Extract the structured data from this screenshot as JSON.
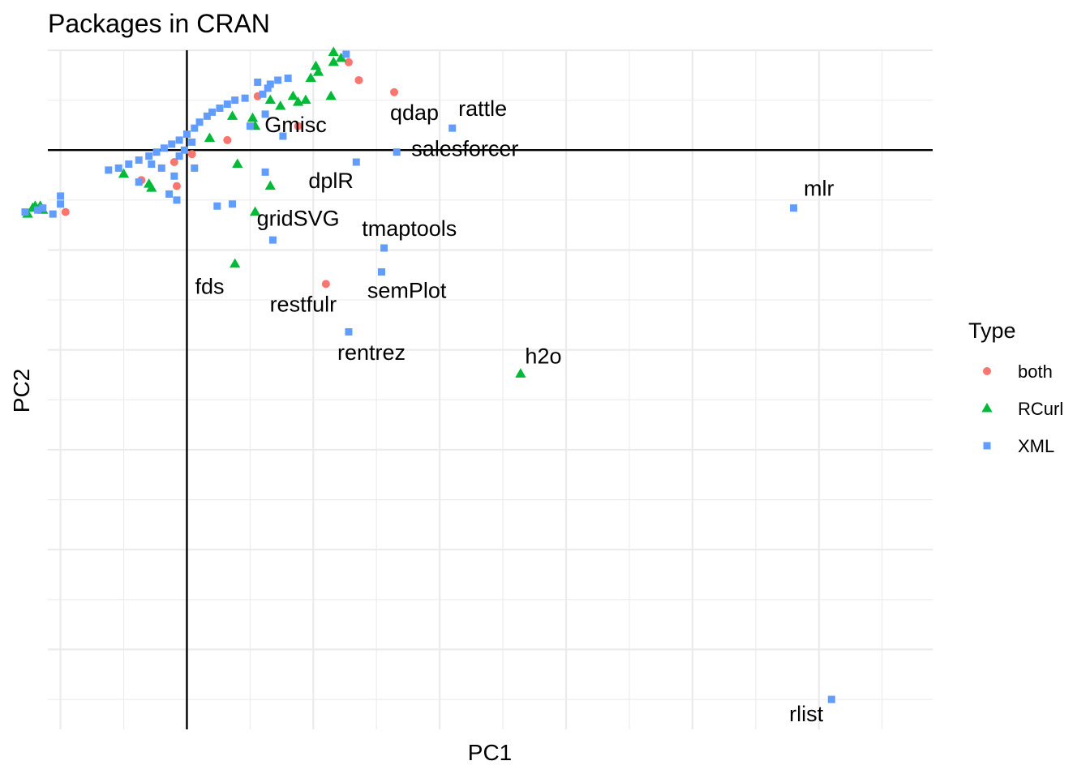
{
  "chart_data": {
    "type": "scatter",
    "title": "Packages in CRAN",
    "xlabel": "PC1",
    "ylabel": "PC2",
    "xlim": [
      -0.55,
      2.95
    ],
    "ylim": [
      -2.9,
      0.5
    ],
    "grid": true,
    "legend": {
      "title": "Type",
      "placement": "right",
      "entries": [
        {
          "name": "both",
          "shape": "circle",
          "color": "#F8766D"
        },
        {
          "name": "RCurl",
          "shape": "triangle",
          "color": "#00BA38"
        },
        {
          "name": "XML",
          "shape": "square",
          "color": "#619CFF"
        }
      ]
    },
    "series": [
      {
        "name": "both",
        "color": "#F8766D",
        "shape": "circle",
        "points": [
          [
            0.64,
            0.44
          ],
          [
            0.68,
            0.35
          ],
          [
            0.82,
            0.29
          ],
          [
            0.28,
            0.27
          ],
          [
            0.44,
            0.12
          ],
          [
            0.16,
            0.05
          ],
          [
            0.02,
            -0.02
          ],
          [
            -0.05,
            -0.06
          ],
          [
            -0.18,
            -0.15
          ],
          [
            -0.04,
            -0.18
          ],
          [
            -0.48,
            -0.31
          ],
          [
            0.55,
            -0.67
          ]
        ]
      },
      {
        "name": "RCurl",
        "color": "#00BA38",
        "shape": "triangle",
        "points": [
          [
            0.58,
            0.49
          ],
          [
            0.58,
            0.44
          ],
          [
            0.61,
            0.46
          ],
          [
            0.51,
            0.42
          ],
          [
            0.49,
            0.36
          ],
          [
            0.52,
            0.39
          ],
          [
            0.57,
            0.27
          ],
          [
            0.42,
            0.27
          ],
          [
            0.47,
            0.25
          ],
          [
            0.33,
            0.25
          ],
          [
            0.37,
            0.22
          ],
          [
            0.44,
            0.24
          ],
          [
            0.26,
            0.16
          ],
          [
            0.18,
            0.17
          ],
          [
            0.27,
            0.12
          ],
          [
            0.09,
            0.06
          ],
          [
            0.2,
            -0.07
          ],
          [
            -0.25,
            -0.12
          ],
          [
            -0.15,
            -0.17
          ],
          [
            -0.14,
            -0.19
          ],
          [
            0.33,
            -0.18
          ],
          [
            0.27,
            -0.31
          ],
          [
            0.19,
            -0.57
          ],
          [
            1.32,
            -1.12
          ],
          [
            -0.6,
            -0.28
          ],
          [
            -0.61,
            -0.29
          ],
          [
            -0.57,
            -0.3
          ],
          [
            -0.63,
            -0.32
          ],
          [
            -0.58,
            -0.28
          ]
        ]
      },
      {
        "name": "XML",
        "color": "#619CFF",
        "shape": "square",
        "points": [
          [
            0.63,
            0.48
          ],
          [
            0.4,
            0.36
          ],
          [
            0.36,
            0.35
          ],
          [
            0.33,
            0.33
          ],
          [
            0.28,
            0.34
          ],
          [
            0.32,
            0.31
          ],
          [
            0.3,
            0.28
          ],
          [
            0.23,
            0.26
          ],
          [
            0.19,
            0.25
          ],
          [
            0.16,
            0.23
          ],
          [
            0.13,
            0.21
          ],
          [
            0.1,
            0.19
          ],
          [
            0.08,
            0.17
          ],
          [
            0.05,
            0.14
          ],
          [
            0.03,
            0.11
          ],
          [
            0.0,
            0.08
          ],
          [
            -0.03,
            0.05
          ],
          [
            -0.06,
            0.03
          ],
          [
            -0.09,
            0.01
          ],
          [
            -0.12,
            -0.01
          ],
          [
            -0.15,
            -0.03
          ],
          [
            -0.19,
            -0.05
          ],
          [
            -0.23,
            -0.07
          ],
          [
            -0.27,
            -0.09
          ],
          [
            -0.31,
            -0.1
          ],
          [
            0.31,
            0.18
          ],
          [
            0.25,
            0.12
          ],
          [
            0.38,
            0.07
          ],
          [
            0.02,
            0.04
          ],
          [
            -0.01,
            0.0
          ],
          [
            -0.03,
            -0.03
          ],
          [
            0.03,
            -0.09
          ],
          [
            -0.1,
            -0.09
          ],
          [
            -0.05,
            -0.13
          ],
          [
            -0.14,
            -0.07
          ],
          [
            -0.19,
            -0.16
          ],
          [
            -0.07,
            -0.22
          ],
          [
            0.31,
            -0.11
          ],
          [
            0.18,
            -0.27
          ],
          [
            0.12,
            -0.28
          ],
          [
            0.34,
            -0.45
          ],
          [
            0.67,
            -0.06
          ],
          [
            0.83,
            -0.01
          ],
          [
            1.05,
            0.11
          ],
          [
            0.64,
            -0.91
          ],
          [
            0.78,
            -0.49
          ],
          [
            0.77,
            -0.61
          ],
          [
            2.4,
            -0.29
          ],
          [
            2.55,
            -2.75
          ],
          [
            -0.5,
            -0.23
          ],
          [
            -0.5,
            -0.27
          ],
          [
            -0.57,
            -0.29
          ],
          [
            -0.53,
            -0.32
          ],
          [
            -0.59,
            -0.3
          ],
          [
            -0.64,
            -0.31
          ],
          [
            -0.04,
            -0.25
          ]
        ]
      }
    ],
    "annotations": [
      {
        "text": "qdap",
        "x": 0.9,
        "y": 0.18
      },
      {
        "text": "rattle",
        "x": 1.17,
        "y": 0.2
      },
      {
        "text": "Gmisc",
        "x": 0.43,
        "y": 0.12
      },
      {
        "text": "salesforcer",
        "x": 1.1,
        "y": 0.0
      },
      {
        "text": "dplR",
        "x": 0.57,
        "y": -0.16
      },
      {
        "text": "mlr",
        "x": 2.5,
        "y": -0.2
      },
      {
        "text": "gridSVG",
        "x": 0.44,
        "y": -0.35
      },
      {
        "text": "tmaptools",
        "x": 0.88,
        "y": -0.4
      },
      {
        "text": "fds",
        "x": 0.09,
        "y": -0.69
      },
      {
        "text": "restfulr",
        "x": 0.46,
        "y": -0.78
      },
      {
        "text": "semPlot",
        "x": 0.87,
        "y": -0.71
      },
      {
        "text": "rentrez",
        "x": 0.73,
        "y": -1.02
      },
      {
        "text": "h2o",
        "x": 1.41,
        "y": -1.04
      },
      {
        "text": "rlist",
        "x": 2.45,
        "y": -2.83
      }
    ]
  }
}
